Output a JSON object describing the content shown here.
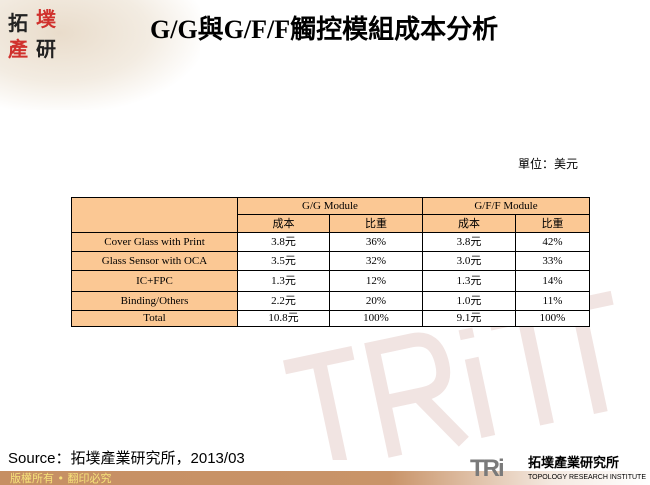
{
  "logo": {
    "chars": [
      "拓",
      "墣",
      "產",
      "研"
    ]
  },
  "title": "G/G與G/F/F觸控模組成本分析",
  "unit": "單位：美元",
  "table": {
    "groups": [
      "G/G Module",
      "G/F/F Module"
    ],
    "subheaders": [
      "成本",
      "比重",
      "成本",
      "比重"
    ],
    "rows": [
      {
        "label": "Cover Glass with Print",
        "values": [
          "3.8元",
          "36%",
          "3.8元",
          "42%"
        ]
      },
      {
        "label": "Glass Sensor with OCA",
        "values": [
          "3.5元",
          "32%",
          "3.0元",
          "33%"
        ]
      },
      {
        "label": "IC+FPC",
        "values": [
          "1.3元",
          "12%",
          "1.3元",
          "14%"
        ]
      },
      {
        "label": "Binding/Others",
        "values": [
          "2.2元",
          "20%",
          "1.0元",
          "11%"
        ]
      },
      {
        "label": "Total",
        "values": [
          "10.8元",
          "100%",
          "9.1元",
          "100%"
        ]
      }
    ]
  },
  "source": "Source：拓墣產業研究所，2013/03",
  "copyright": "版權所有 • 翻印必究",
  "footer_logo": {
    "mark": "TRi",
    "cn": "拓墣產業研究所",
    "en": "TOPOLOGY RESEARCH INSTITUTE"
  },
  "colors": {
    "header_fill": "#fbc894",
    "footer_bar": "#c68f63",
    "accent_red": "#c0392b"
  }
}
